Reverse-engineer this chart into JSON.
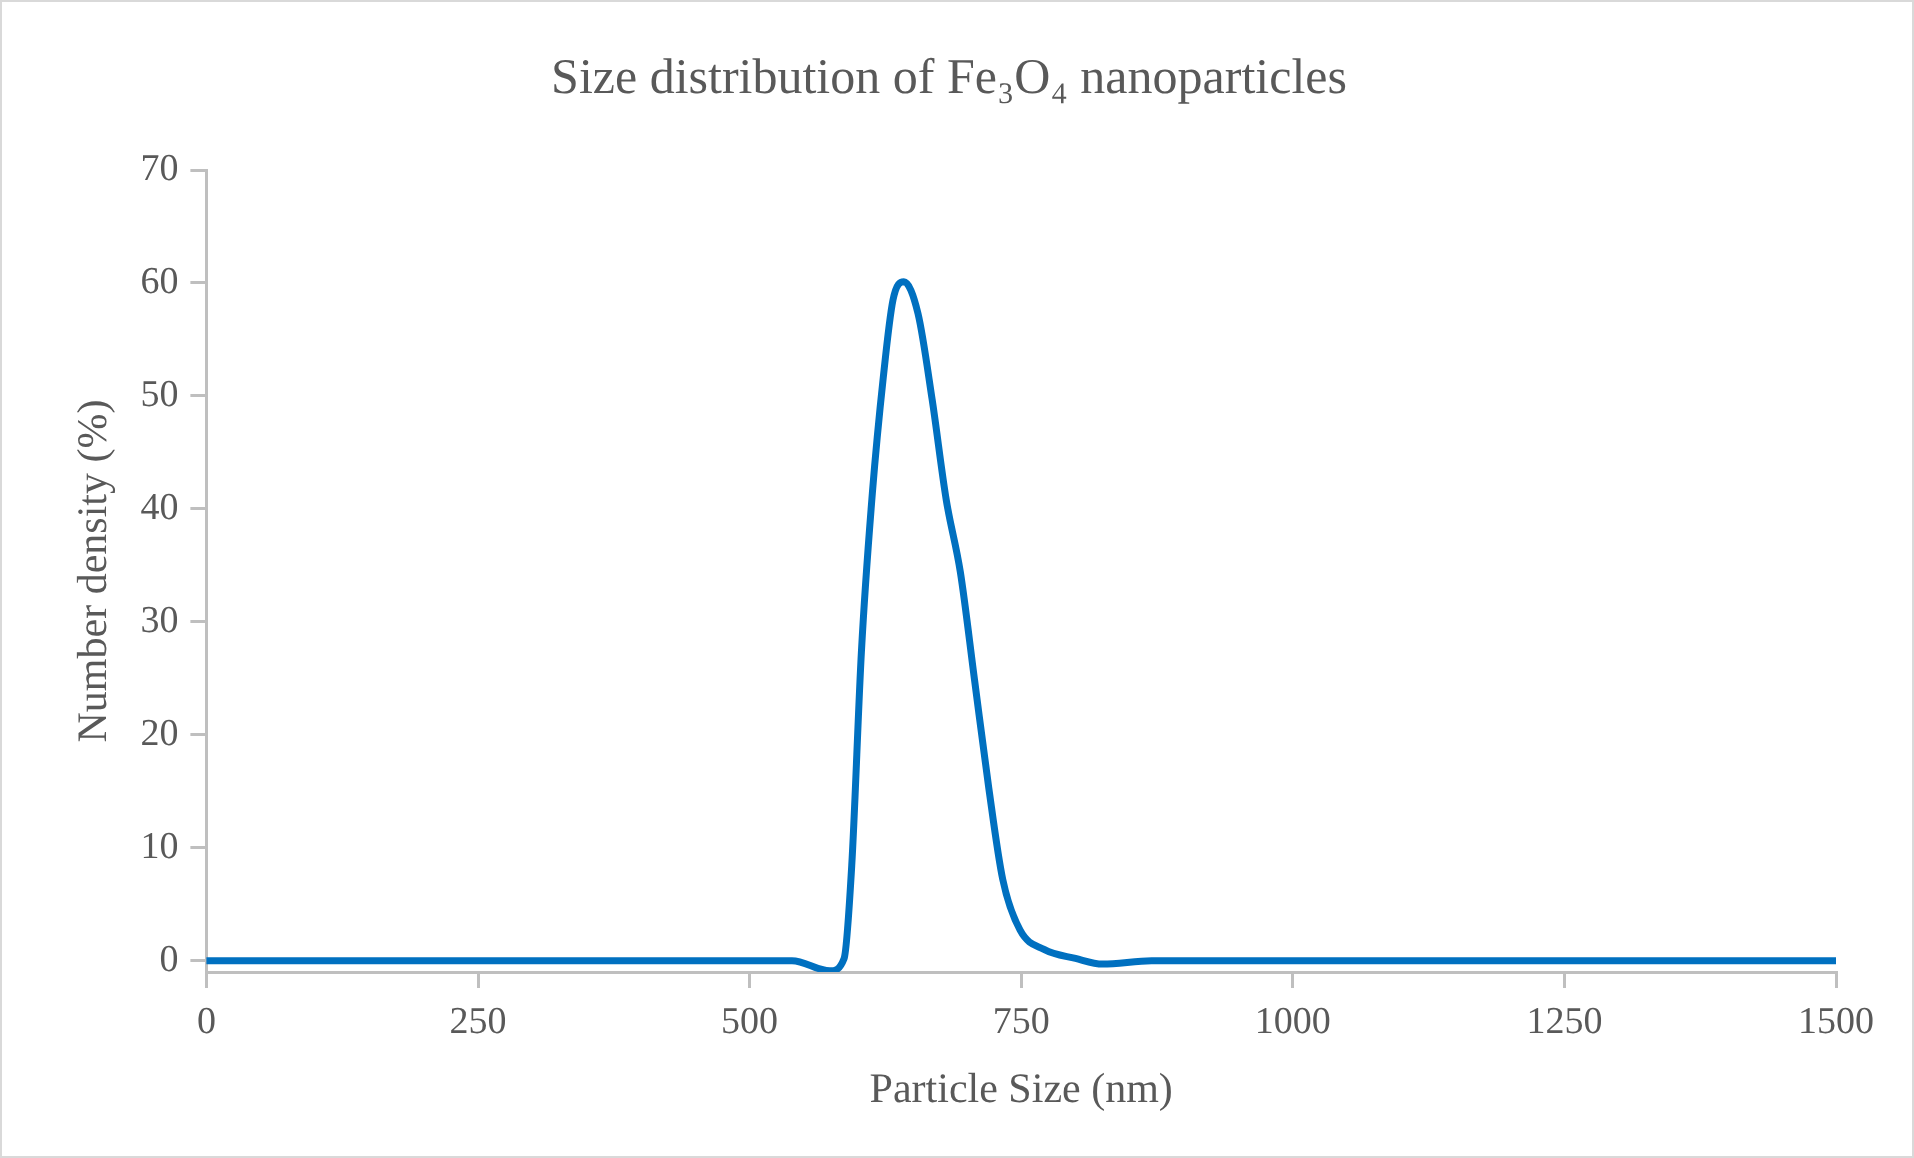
{
  "chart_data": {
    "type": "line",
    "title": "Size distribution of Fe₃O₄ nanoparticles",
    "xlabel": "Particle Size (nm)",
    "ylabel": "Number density (%)",
    "x": [
      0,
      539,
      574,
      587,
      594,
      603,
      613,
      623,
      632,
      642,
      655,
      668,
      681,
      694,
      707,
      720,
      733,
      749,
      771,
      800,
      825,
      870,
      1000,
      1250,
      1500
    ],
    "series": [
      {
        "color": "#0070c0",
        "values": [
          0,
          0,
          -0.9,
          0.2,
          8.4,
          27.5,
          41.4,
          51.6,
          58.5,
          60.1,
          57.3,
          49.7,
          40.8,
          34.4,
          24.9,
          15.4,
          7.2,
          2.7,
          1.0,
          0.2,
          -0.3,
          0,
          0,
          0,
          0
        ]
      }
    ],
    "xlim": [
      0,
      1500
    ],
    "xticks": [
      0,
      250,
      500,
      750,
      1000,
      1250,
      1500
    ],
    "ylim": [
      -1,
      70
    ],
    "yticks": [
      0,
      10,
      20,
      30,
      40,
      50,
      60,
      70
    ],
    "grid": false,
    "legend": false,
    "marker": "none",
    "line_style": "solid"
  }
}
